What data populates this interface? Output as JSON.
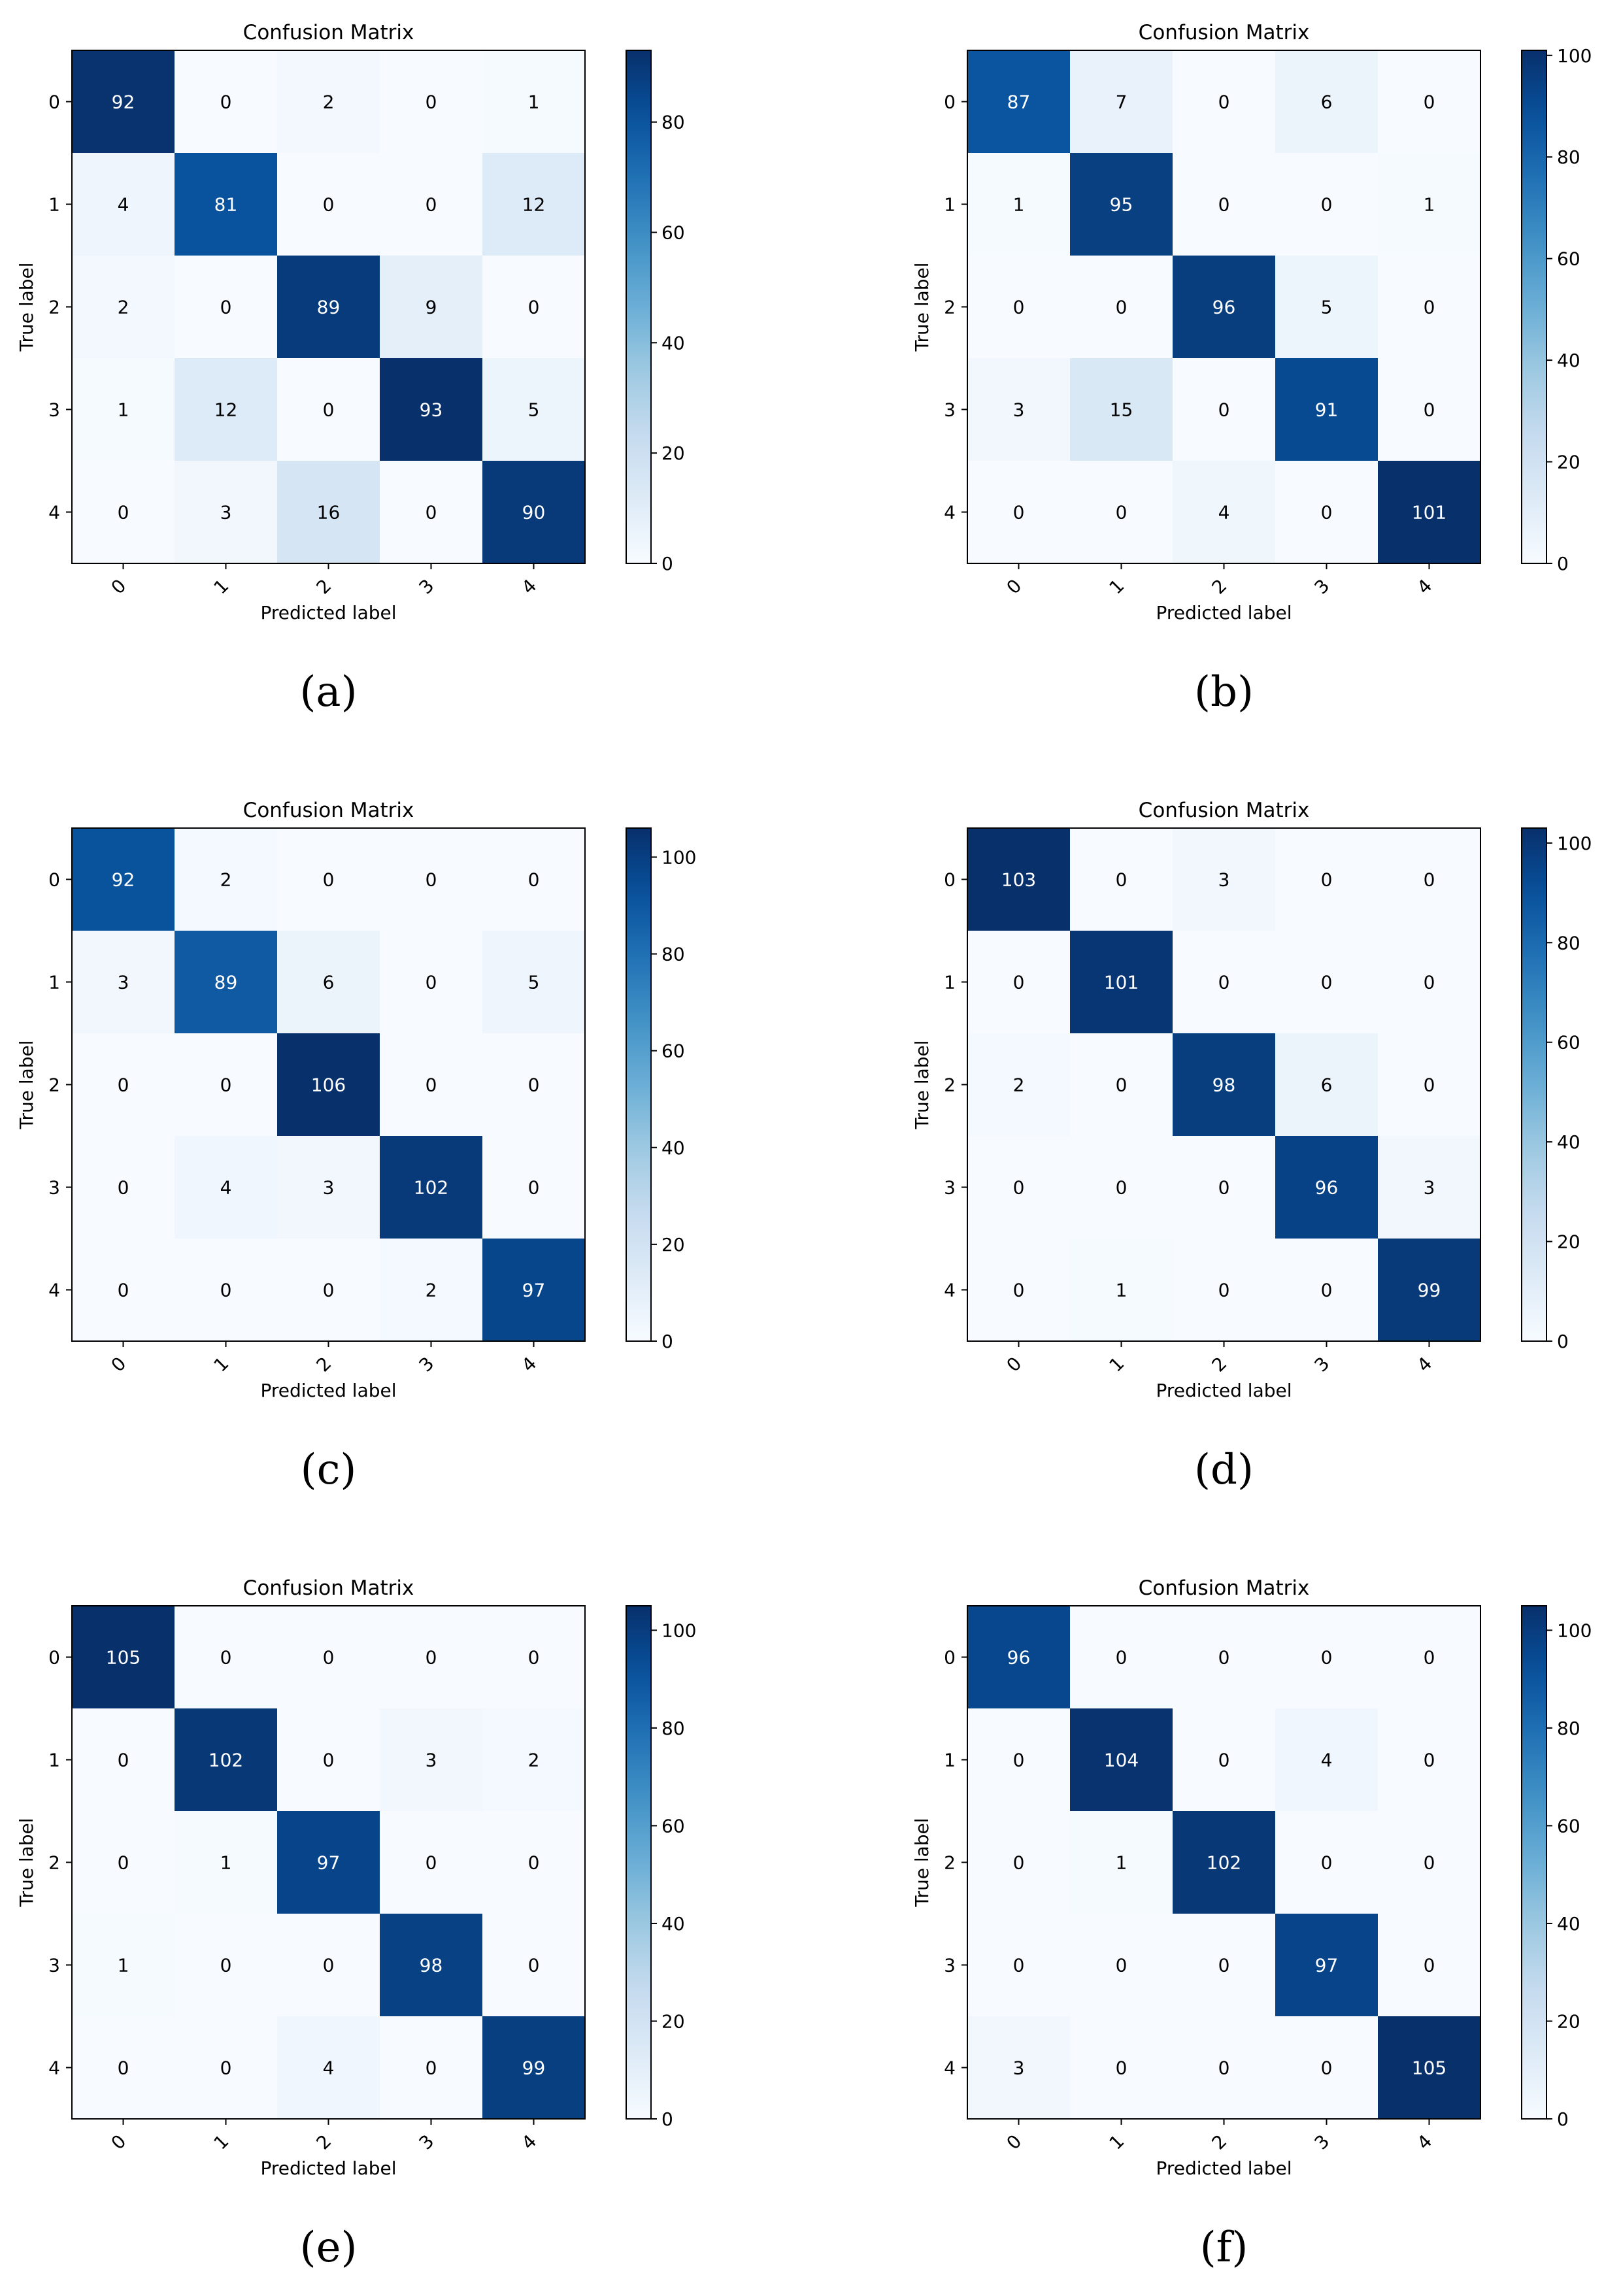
{
  "chart_data": [
    {
      "type": "heatmap",
      "title": "Confusion Matrix",
      "xlabel": "Predicted label",
      "ylabel": "True label",
      "x_categories": [
        "0",
        "1",
        "2",
        "3",
        "4"
      ],
      "y_categories": [
        "0",
        "1",
        "2",
        "3",
        "4"
      ],
      "values": [
        [
          92,
          0,
          2,
          0,
          1
        ],
        [
          4,
          81,
          0,
          0,
          12
        ],
        [
          2,
          0,
          89,
          9,
          0
        ],
        [
          1,
          12,
          0,
          93,
          5
        ],
        [
          0,
          3,
          16,
          0,
          90
        ]
      ],
      "vmin": 0,
      "vmax": 93,
      "colorbar_ticks": [
        0,
        20,
        40,
        60,
        80
      ],
      "caption": "(a)"
    },
    {
      "type": "heatmap",
      "title": "Confusion Matrix",
      "xlabel": "Predicted label",
      "ylabel": "True label",
      "x_categories": [
        "0",
        "1",
        "2",
        "3",
        "4"
      ],
      "y_categories": [
        "0",
        "1",
        "2",
        "3",
        "4"
      ],
      "values": [
        [
          87,
          7,
          0,
          6,
          0
        ],
        [
          1,
          95,
          0,
          0,
          1
        ],
        [
          0,
          0,
          96,
          5,
          0
        ],
        [
          3,
          15,
          0,
          91,
          0
        ],
        [
          0,
          0,
          4,
          0,
          101
        ]
      ],
      "vmin": 0,
      "vmax": 101,
      "colorbar_ticks": [
        0,
        20,
        40,
        60,
        80,
        100
      ],
      "caption": "(b)"
    },
    {
      "type": "heatmap",
      "title": "Confusion Matrix",
      "xlabel": "Predicted label",
      "ylabel": "True label",
      "x_categories": [
        "0",
        "1",
        "2",
        "3",
        "4"
      ],
      "y_categories": [
        "0",
        "1",
        "2",
        "3",
        "4"
      ],
      "values": [
        [
          92,
          2,
          0,
          0,
          0
        ],
        [
          3,
          89,
          6,
          0,
          5
        ],
        [
          0,
          0,
          106,
          0,
          0
        ],
        [
          0,
          4,
          3,
          102,
          0
        ],
        [
          0,
          0,
          0,
          2,
          97
        ]
      ],
      "vmin": 0,
      "vmax": 106,
      "colorbar_ticks": [
        0,
        20,
        40,
        60,
        80,
        100
      ],
      "caption": "(c)"
    },
    {
      "type": "heatmap",
      "title": "Confusion Matrix",
      "xlabel": "Predicted label",
      "ylabel": "True label",
      "x_categories": [
        "0",
        "1",
        "2",
        "3",
        "4"
      ],
      "y_categories": [
        "0",
        "1",
        "2",
        "3",
        "4"
      ],
      "values": [
        [
          103,
          0,
          3,
          0,
          0
        ],
        [
          0,
          101,
          0,
          0,
          0
        ],
        [
          2,
          0,
          98,
          6,
          0
        ],
        [
          0,
          0,
          0,
          96,
          3
        ],
        [
          0,
          1,
          0,
          0,
          99
        ]
      ],
      "vmin": 0,
      "vmax": 103,
      "colorbar_ticks": [
        0,
        20,
        40,
        60,
        80,
        100
      ],
      "caption": "(d)"
    },
    {
      "type": "heatmap",
      "title": "Confusion Matrix",
      "xlabel": "Predicted label",
      "ylabel": "True label",
      "x_categories": [
        "0",
        "1",
        "2",
        "3",
        "4"
      ],
      "y_categories": [
        "0",
        "1",
        "2",
        "3",
        "4"
      ],
      "values": [
        [
          105,
          0,
          0,
          0,
          0
        ],
        [
          0,
          102,
          0,
          3,
          2
        ],
        [
          0,
          1,
          97,
          0,
          0
        ],
        [
          1,
          0,
          0,
          98,
          0
        ],
        [
          0,
          0,
          4,
          0,
          99
        ]
      ],
      "vmin": 0,
      "vmax": 105,
      "colorbar_ticks": [
        0,
        20,
        40,
        60,
        80,
        100
      ],
      "caption": "(e)"
    },
    {
      "type": "heatmap",
      "title": "Confusion Matrix",
      "xlabel": "Predicted label",
      "ylabel": "True label",
      "x_categories": [
        "0",
        "1",
        "2",
        "3",
        "4"
      ],
      "y_categories": [
        "0",
        "1",
        "2",
        "3",
        "4"
      ],
      "values": [
        [
          96,
          0,
          0,
          0,
          0
        ],
        [
          0,
          104,
          0,
          4,
          0
        ],
        [
          0,
          1,
          102,
          0,
          0
        ],
        [
          0,
          0,
          0,
          97,
          0
        ],
        [
          3,
          0,
          0,
          0,
          105
        ]
      ],
      "vmin": 0,
      "vmax": 105,
      "colorbar_ticks": [
        0,
        20,
        40,
        60,
        80,
        100
      ],
      "caption": "(f)"
    }
  ]
}
